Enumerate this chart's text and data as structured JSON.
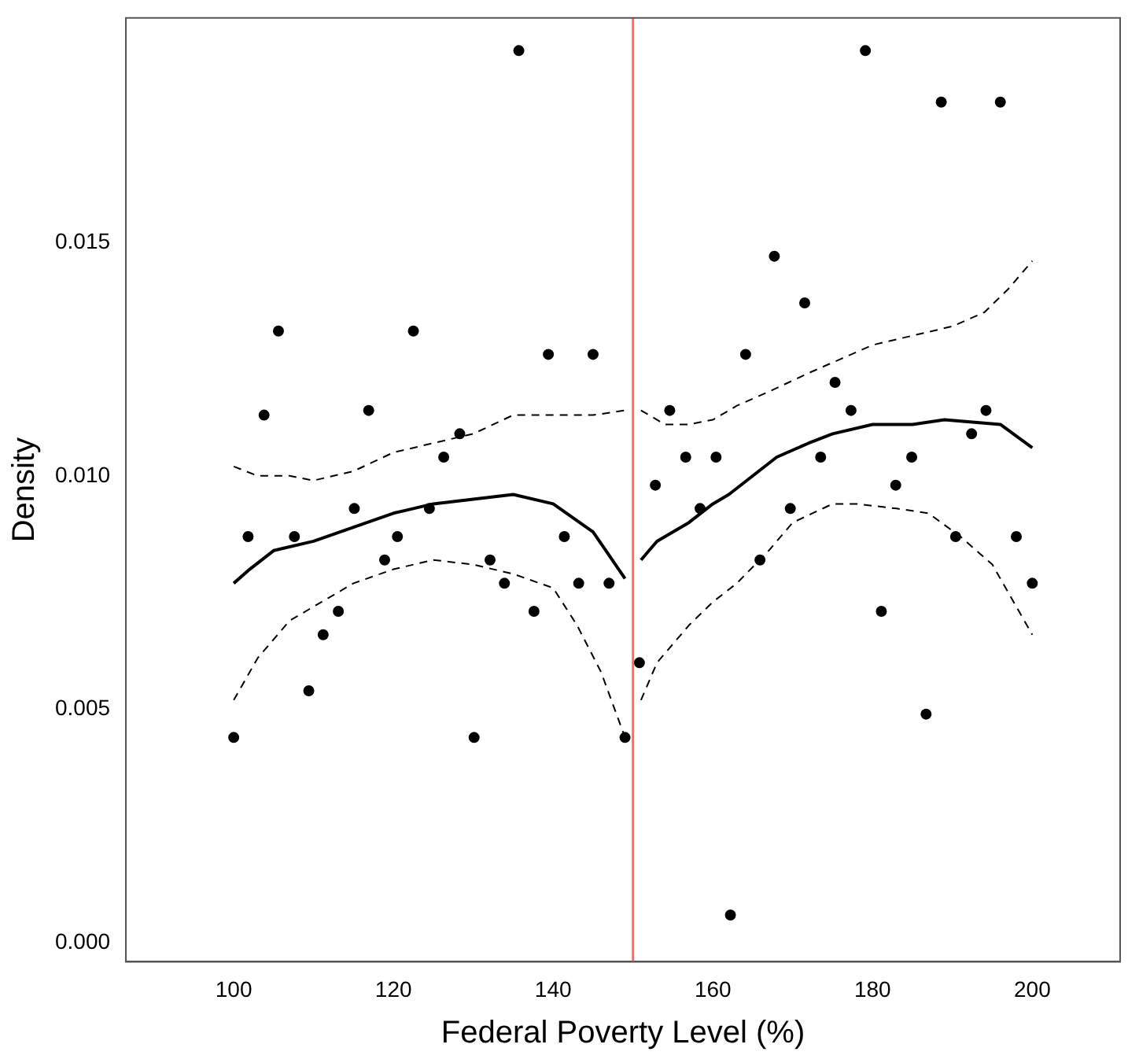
{
  "chart_data": {
    "type": "scatter",
    "xlabel": "Federal Poverty Level (%)",
    "ylabel": "Density",
    "xlim": [
      86.5,
      211
    ],
    "ylim": [
      -0.0004,
      0.0198
    ],
    "xticks": [
      100,
      120,
      140,
      160,
      180,
      200
    ],
    "yticks": [
      {
        "value": 0,
        "label": "0.000"
      },
      {
        "value": 0.005,
        "label": "0.005"
      },
      {
        "value": 0.01,
        "label": "0.010"
      },
      {
        "value": 0.015,
        "label": "0.015"
      }
    ],
    "grid": false,
    "legend": false,
    "ref_lines": [
      {
        "axis": "x",
        "value": 150,
        "color": "#ff6b6b"
      }
    ],
    "series": [
      {
        "type": "scatter",
        "color": "#000000",
        "marker": "circle",
        "x": [
          100,
          101.8,
          103.8,
          105.6,
          107.6,
          109.4,
          111.2,
          113.1,
          115.1,
          116.9,
          118.9,
          120.5,
          122.5,
          124.5,
          126.3,
          128.3,
          130.1,
          132.1,
          133.9,
          135.7,
          137.6,
          139.4,
          141.4,
          143.2,
          145,
          147,
          149,
          150.8,
          152.8,
          154.6,
          156.6,
          158.4,
          160.4,
          162.2,
          164.1,
          165.9,
          167.7,
          169.7,
          171.5,
          173.5,
          175.3,
          177.3,
          179.1,
          181.1,
          182.9,
          184.9,
          186.7,
          188.6,
          190.4,
          192.4,
          194.2,
          196,
          198,
          200
        ],
        "values": [
          0.0044,
          0.0087,
          0.0113,
          0.0131,
          0.0087,
          0.0054,
          0.0066,
          0.0071,
          0.0093,
          0.0114,
          0.0082,
          0.0087,
          0.0131,
          0.0093,
          0.0104,
          0.0109,
          0.0044,
          0.0082,
          0.0077,
          0.0191,
          0.0071,
          0.0126,
          0.0087,
          0.0077,
          0.0126,
          0.0077,
          0.0044,
          0.006,
          0.0098,
          0.0114,
          0.0104,
          0.0093,
          0.0104,
          0.0006,
          0.0126,
          0.0082,
          0.0147,
          0.0093,
          0.0137,
          0.0104,
          0.012,
          0.0114,
          0.0191,
          0.0071,
          0.0098,
          0.0104,
          0.0049,
          0.018,
          0.0087,
          0.0109,
          0.0114,
          0.018,
          0.0087,
          0.0077
        ]
      },
      {
        "type": "line",
        "color": "#000000",
        "marker": "none",
        "line_style": "solid",
        "x": [
          100,
          102,
          105,
          110,
          115,
          120,
          125,
          130,
          135,
          140,
          145,
          149
        ],
        "values": [
          0.0077,
          0.008,
          0.0084,
          0.0086,
          0.0089,
          0.0092,
          0.0094,
          0.0095,
          0.0096,
          0.0094,
          0.0088,
          0.0078
        ]
      },
      {
        "type": "line",
        "color": "#000000",
        "marker": "none",
        "line_style": "dashed",
        "x": [
          100,
          103,
          107,
          110,
          115,
          120,
          125,
          130,
          135,
          140,
          145,
          149
        ],
        "values": [
          0.0102,
          0.01,
          0.01,
          0.0099,
          0.0101,
          0.0105,
          0.0107,
          0.0109,
          0.0113,
          0.0113,
          0.0113,
          0.0114
        ]
      },
      {
        "type": "line",
        "color": "#000000",
        "marker": "none",
        "line_style": "dashed",
        "x": [
          100,
          103,
          107,
          110,
          115,
          120,
          125,
          130,
          135,
          140,
          143,
          146,
          149
        ],
        "values": [
          0.0052,
          0.0061,
          0.0069,
          0.0072,
          0.0077,
          0.008,
          0.0082,
          0.0081,
          0.0079,
          0.0076,
          0.0068,
          0.0058,
          0.0044
        ]
      },
      {
        "type": "line",
        "color": "#000000",
        "marker": "none",
        "line_style": "solid",
        "x": [
          151,
          153,
          157,
          160,
          162,
          165,
          168,
          172,
          175,
          180,
          185,
          189,
          196,
          200
        ],
        "values": [
          0.0082,
          0.0086,
          0.009,
          0.0094,
          0.0096,
          0.01,
          0.0104,
          0.0107,
          0.0109,
          0.0111,
          0.0111,
          0.0112,
          0.0111,
          0.0106
        ]
      },
      {
        "type": "line",
        "color": "#000000",
        "marker": "none",
        "line_style": "dashed",
        "x": [
          151,
          154,
          157,
          160,
          163,
          167,
          172,
          176,
          180,
          185,
          190,
          194,
          197,
          200
        ],
        "values": [
          0.0114,
          0.0111,
          0.0111,
          0.0112,
          0.0115,
          0.0118,
          0.0122,
          0.0125,
          0.0128,
          0.013,
          0.0132,
          0.0135,
          0.014,
          0.0146
        ]
      },
      {
        "type": "line",
        "color": "#000000",
        "marker": "none",
        "line_style": "dashed",
        "x": [
          151,
          153,
          157,
          160,
          163,
          167,
          170,
          175,
          178,
          183,
          187,
          191,
          195,
          198,
          200
        ],
        "values": [
          0.0052,
          0.006,
          0.0068,
          0.0073,
          0.0077,
          0.0084,
          0.009,
          0.0094,
          0.0094,
          0.0093,
          0.0092,
          0.0087,
          0.0081,
          0.0072,
          0.0066
        ]
      }
    ]
  }
}
